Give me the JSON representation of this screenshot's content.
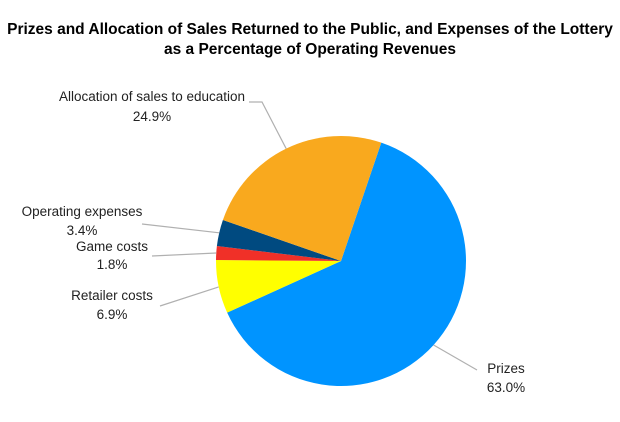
{
  "chart_data": {
    "type": "pie",
    "title_line1": "Prizes and Allocation of Sales Returned to the Public, and Expenses of the Lottery",
    "title_line2": "as a Percentage of Operating Revenues",
    "slices": [
      {
        "label": "Prizes",
        "value": 63.0,
        "value_text": "63.0%",
        "color": "#0094FF"
      },
      {
        "label": "Retailer costs",
        "value": 6.9,
        "value_text": "6.9%",
        "color": "#FFFF00"
      },
      {
        "label": "Game costs",
        "value": 1.8,
        "value_text": "1.8%",
        "color": "#F03028"
      },
      {
        "label": "Operating expenses",
        "value": 3.4,
        "value_text": "3.4%",
        "color": "#004A80"
      },
      {
        "label": "Allocation of sales to education",
        "value": 24.9,
        "value_text": "24.9%",
        "color": "#F9A91E"
      }
    ],
    "legend": "none"
  }
}
